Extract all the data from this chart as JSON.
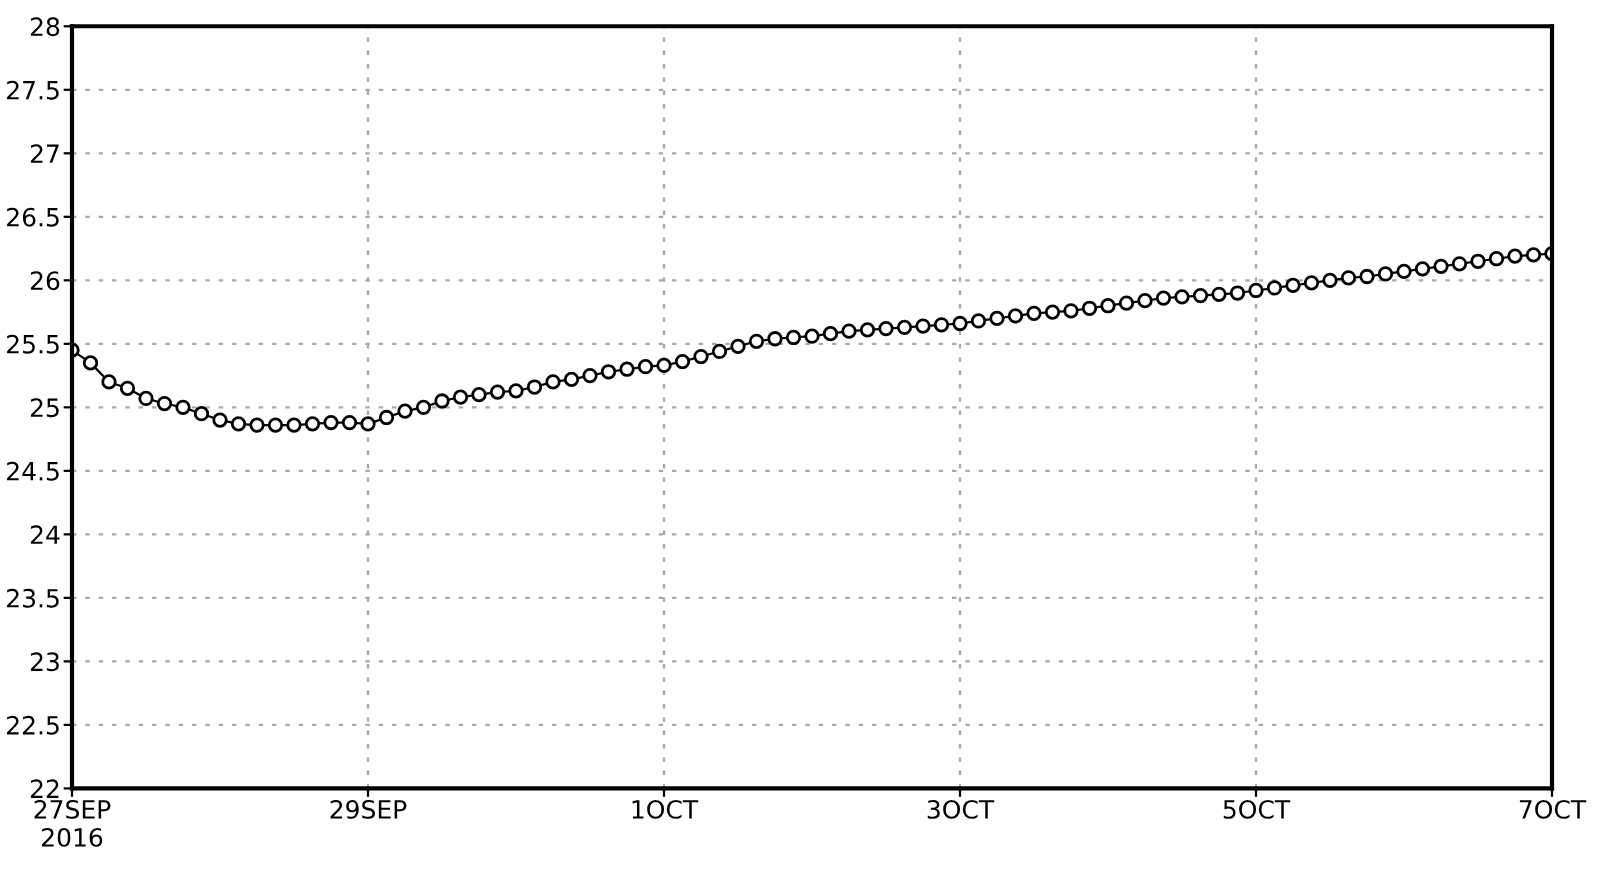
{
  "chart_data": {
    "type": "line",
    "x": [
      "2016-09-27T00:00",
      "2016-09-27T03:00",
      "2016-09-27T06:00",
      "2016-09-27T09:00",
      "2016-09-27T12:00",
      "2016-09-27T15:00",
      "2016-09-27T18:00",
      "2016-09-27T21:00",
      "2016-09-28T00:00",
      "2016-09-28T03:00",
      "2016-09-28T06:00",
      "2016-09-28T09:00",
      "2016-09-28T12:00",
      "2016-09-28T15:00",
      "2016-09-28T18:00",
      "2016-09-28T21:00",
      "2016-09-29T00:00",
      "2016-09-29T03:00",
      "2016-09-29T06:00",
      "2016-09-29T09:00",
      "2016-09-29T12:00",
      "2016-09-29T15:00",
      "2016-09-29T18:00",
      "2016-09-29T21:00",
      "2016-09-30T00:00",
      "2016-09-30T03:00",
      "2016-09-30T06:00",
      "2016-09-30T09:00",
      "2016-09-30T12:00",
      "2016-09-30T15:00",
      "2016-09-30T18:00",
      "2016-09-30T21:00",
      "2016-10-01T00:00",
      "2016-10-01T03:00",
      "2016-10-01T06:00",
      "2016-10-01T09:00",
      "2016-10-01T12:00",
      "2016-10-01T15:00",
      "2016-10-01T18:00",
      "2016-10-01T21:00",
      "2016-10-02T00:00",
      "2016-10-02T03:00",
      "2016-10-02T06:00",
      "2016-10-02T09:00",
      "2016-10-02T12:00",
      "2016-10-02T15:00",
      "2016-10-02T18:00",
      "2016-10-02T21:00",
      "2016-10-03T00:00",
      "2016-10-03T03:00",
      "2016-10-03T06:00",
      "2016-10-03T09:00",
      "2016-10-03T12:00",
      "2016-10-03T15:00",
      "2016-10-03T18:00",
      "2016-10-03T21:00",
      "2016-10-04T00:00",
      "2016-10-04T03:00",
      "2016-10-04T06:00",
      "2016-10-04T09:00",
      "2016-10-04T12:00",
      "2016-10-04T15:00",
      "2016-10-04T18:00",
      "2016-10-04T21:00",
      "2016-10-05T00:00",
      "2016-10-05T03:00",
      "2016-10-05T06:00",
      "2016-10-05T09:00",
      "2016-10-05T12:00",
      "2016-10-05T15:00",
      "2016-10-05T18:00",
      "2016-10-05T21:00",
      "2016-10-06T00:00",
      "2016-10-06T03:00",
      "2016-10-06T06:00",
      "2016-10-06T09:00",
      "2016-10-06T12:00",
      "2016-10-06T15:00",
      "2016-10-06T18:00",
      "2016-10-06T21:00",
      "2016-10-07T00:00"
    ],
    "series": [
      {
        "color": "#000000",
        "values": [
          25.45,
          25.35,
          25.2,
          25.15,
          25.07,
          25.03,
          25.0,
          24.95,
          24.9,
          24.87,
          24.86,
          24.86,
          24.86,
          24.87,
          24.88,
          24.88,
          24.87,
          24.92,
          24.97,
          25.0,
          25.05,
          25.08,
          25.1,
          25.12,
          25.13,
          25.16,
          25.2,
          25.22,
          25.25,
          25.28,
          25.3,
          25.32,
          25.33,
          25.36,
          25.4,
          25.44,
          25.48,
          25.52,
          25.54,
          25.55,
          25.56,
          25.58,
          25.6,
          25.61,
          25.62,
          25.63,
          25.64,
          25.65,
          25.66,
          25.68,
          25.7,
          25.72,
          25.74,
          25.75,
          25.76,
          25.78,
          25.8,
          25.82,
          25.84,
          25.86,
          25.87,
          25.88,
          25.89,
          25.9,
          25.92,
          25.94,
          25.96,
          25.98,
          26.0,
          26.02,
          26.03,
          26.05,
          26.07,
          26.09,
          26.11,
          26.13,
          26.15,
          26.17,
          26.19,
          26.2,
          26.21
        ]
      }
    ],
    "xlim": [
      "2016-09-27",
      "2016-10-07"
    ],
    "xticks": [
      {
        "value": "2016-09-27",
        "label": "27SEP\n2016"
      },
      {
        "value": "2016-09-29",
        "label": "29SEP"
      },
      {
        "value": "2016-10-01",
        "label": "1OCT"
      },
      {
        "value": "2016-10-03",
        "label": "3OCT"
      },
      {
        "value": "2016-10-05",
        "label": "5OCT"
      },
      {
        "value": "2016-10-07",
        "label": "7OCT"
      }
    ],
    "ylim": [
      22,
      28
    ],
    "yticks": [
      22,
      22.5,
      23,
      23.5,
      24,
      24.5,
      25,
      25.5,
      26,
      26.5,
      27,
      27.5,
      28
    ],
    "grid": true,
    "marker": "circle",
    "line_style": "solid"
  }
}
